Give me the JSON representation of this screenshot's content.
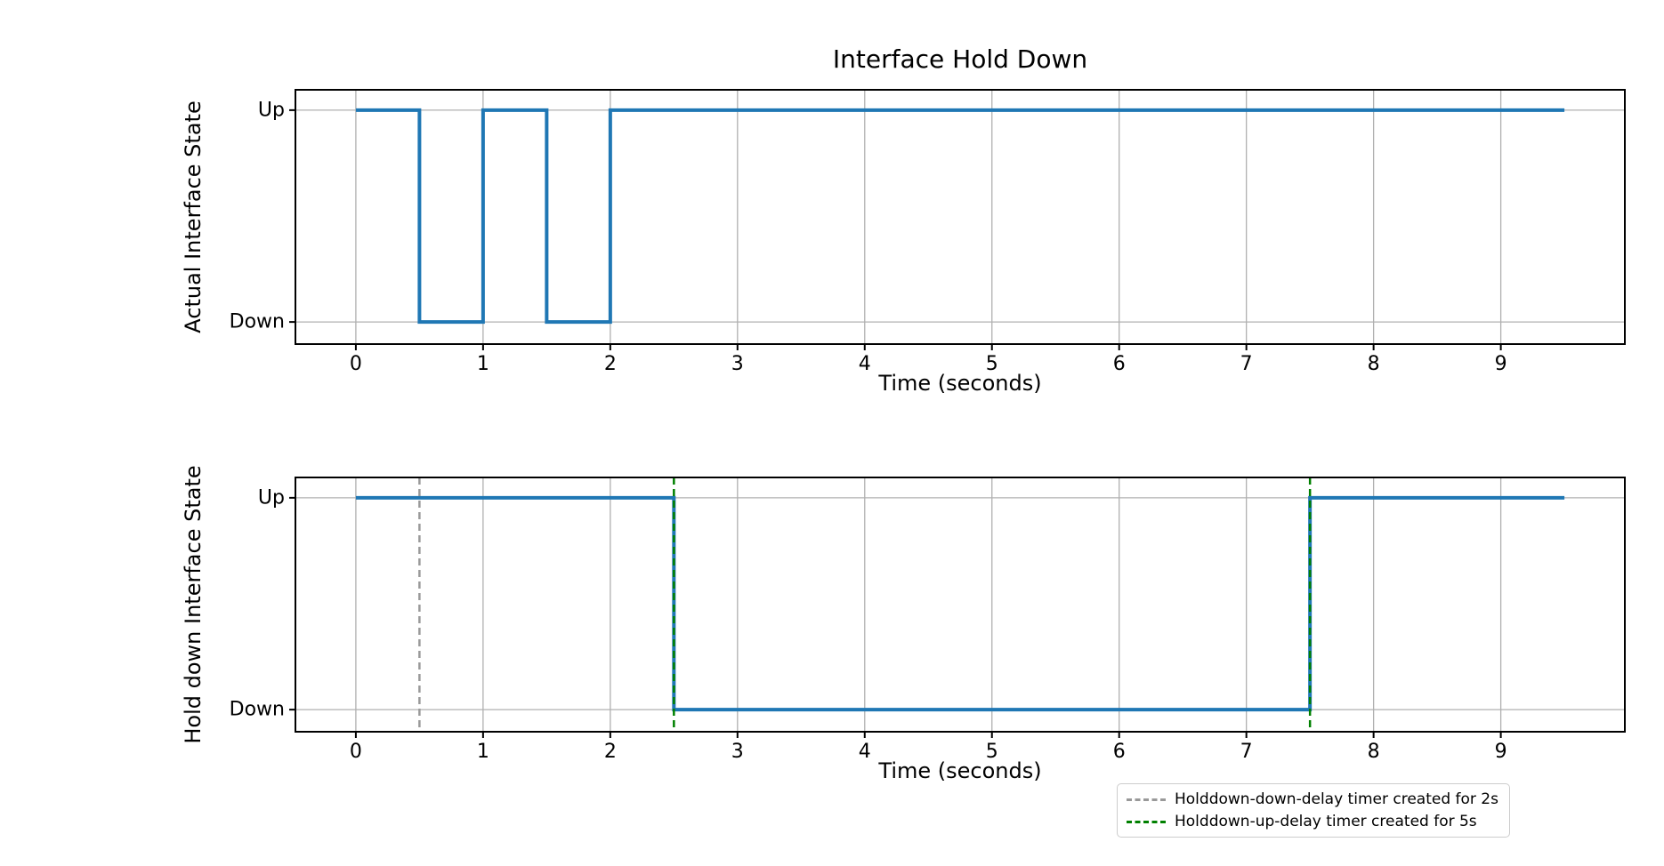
{
  "figure": {
    "background": "#ffffff",
    "text_color": "#000000",
    "grid_color": "#b0b0b0",
    "spine_color": "#000000"
  },
  "chart_data": [
    {
      "type": "step",
      "title": "Interface Hold Down",
      "xlabel": "Time (seconds)",
      "ylabel": "Actual Interface State",
      "ytick_labels": [
        "Up",
        "Down"
      ],
      "xticks": [
        0,
        1,
        2,
        3,
        4,
        5,
        6,
        7,
        8,
        9
      ],
      "xlim": [
        -0.475,
        9.975
      ],
      "grid": true,
      "series": [
        {
          "name": "actual-interface-state",
          "color": "#1f77b4",
          "line_width": 4,
          "steps": [
            {
              "t": 0.0,
              "state": "Up"
            },
            {
              "t": 0.5,
              "state": "Down"
            },
            {
              "t": 1.0,
              "state": "Up"
            },
            {
              "t": 1.5,
              "state": "Down"
            },
            {
              "t": 2.0,
              "state": "Up"
            }
          ],
          "t_end": 9.5
        }
      ],
      "vlines": []
    },
    {
      "type": "step",
      "title": "",
      "xlabel": "Time (seconds)",
      "ylabel": "Hold down Interface State",
      "ytick_labels": [
        "Up",
        "Down"
      ],
      "xticks": [
        0,
        1,
        2,
        3,
        4,
        5,
        6,
        7,
        8,
        9
      ],
      "xlim": [
        -0.475,
        9.975
      ],
      "grid": true,
      "series": [
        {
          "name": "holddown-interface-state",
          "color": "#1f77b4",
          "line_width": 4,
          "steps": [
            {
              "t": 0.0,
              "state": "Up"
            },
            {
              "t": 2.5,
              "state": "Down"
            },
            {
              "t": 7.5,
              "state": "Up"
            }
          ],
          "t_end": 9.5
        }
      ],
      "vlines": [
        {
          "x": 0.5,
          "color": "#999999",
          "style": "dashed"
        },
        {
          "x": 2.5,
          "color": "#008000",
          "style": "dashed"
        },
        {
          "x": 7.5,
          "color": "#008000",
          "style": "dashed"
        }
      ],
      "legend": {
        "position": "below-right",
        "entries": [
          {
            "label": "Holddown-down-delay timer created for 2s",
            "color": "#999999",
            "style": "dashed"
          },
          {
            "label": "Holddown-up-delay timer created for 5s",
            "color": "#008000",
            "style": "dashed"
          }
        ]
      }
    }
  ]
}
